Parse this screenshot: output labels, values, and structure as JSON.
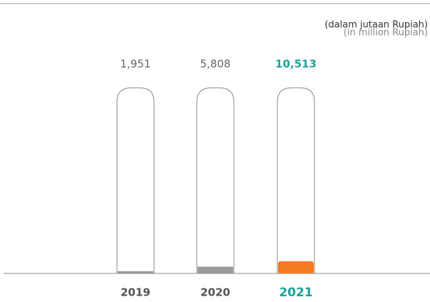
{
  "chart_data": {
    "type": "bar",
    "subtitle": "(dalam jutaan Rupiah)",
    "subtitle_en": "(in million Rupiah)",
    "categories": [
      "2019",
      "2020",
      "2021"
    ],
    "values": [
      1951,
      5808,
      10513
    ],
    "value_labels": [
      "1,951",
      "5,808",
      "10,513"
    ],
    "colors": [
      "#9a9a9a",
      "#9a9a9a",
      "#f47b20"
    ],
    "label_colors": [
      "#666666",
      "#666666",
      "#1aa39a"
    ],
    "ylim": [
      0,
      160000
    ]
  }
}
